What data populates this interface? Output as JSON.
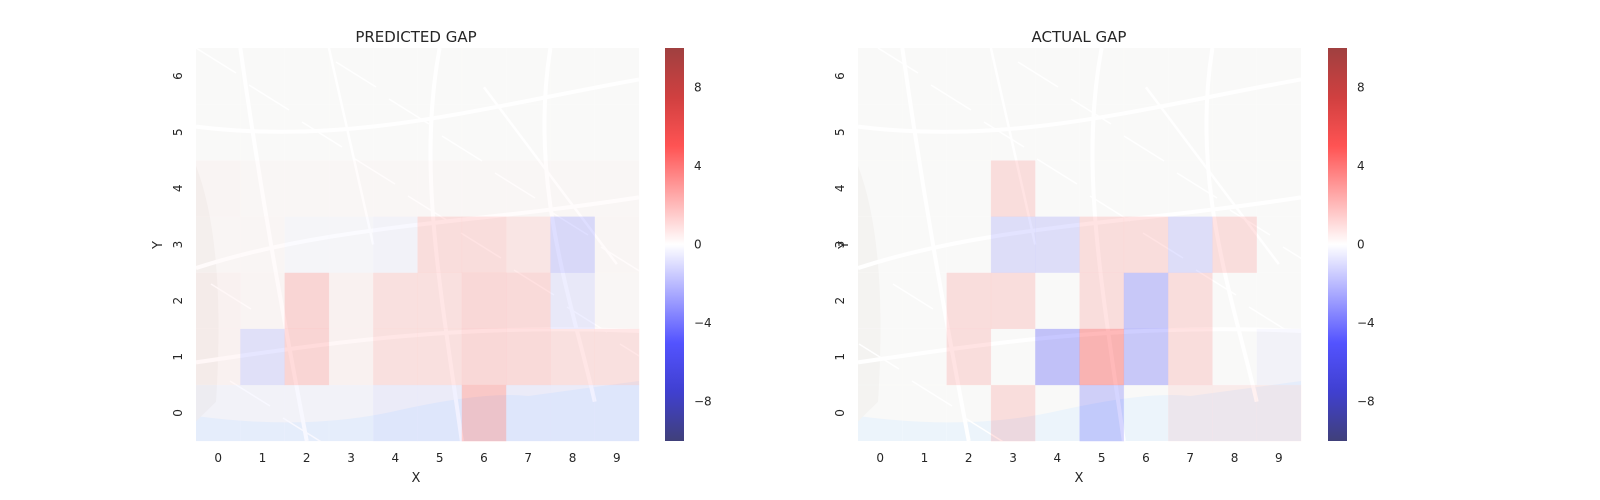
{
  "chart_data": [
    {
      "type": "heatmap",
      "title": "PREDICTED GAP",
      "xlabel": "X",
      "ylabel": "Y",
      "x": [
        "0",
        "1",
        "2",
        "3",
        "4",
        "5",
        "6",
        "7",
        "8",
        "9"
      ],
      "y": [
        "0",
        "1",
        "2",
        "3",
        "4",
        "5",
        "6"
      ],
      "colormap": "seismic",
      "colorbar": {
        "ticks": [
          8,
          4,
          0,
          -4,
          -8
        ],
        "labels": [
          "8",
          "4",
          "0",
          "−4",
          "−8"
        ],
        "range": [
          -10,
          10
        ]
      },
      "background": "street-map",
      "values": [
        [
          -0.5,
          -0.5,
          -0.5,
          -0.5,
          -1.0,
          -1.0,
          3.5,
          -1.0,
          -1.0,
          -1.0
        ],
        [
          0.6,
          -1.8,
          2.6,
          0.6,
          1.8,
          1.8,
          2.4,
          2.2,
          1.8,
          1.8
        ],
        [
          0.6,
          0.4,
          2.6,
          0.6,
          1.8,
          1.8,
          2.4,
          2.2,
          -1.2,
          0.2
        ],
        [
          0.3,
          0.3,
          -0.3,
          -0.3,
          -0.5,
          2.0,
          2.0,
          1.4,
          -2.4,
          0.3
        ],
        [
          0.4,
          0.2,
          0.2,
          0.2,
          0.2,
          0.2,
          0.2,
          0.2,
          0.2,
          0.2
        ],
        [
          0.0,
          0.0,
          0.0,
          0.0,
          0.0,
          0.0,
          0.0,
          0.0,
          0.0,
          0.0
        ],
        [
          0.0,
          0.0,
          0.0,
          0.0,
          0.0,
          0.0,
          0.0,
          0.0,
          0.0,
          0.0
        ]
      ]
    },
    {
      "type": "heatmap",
      "title": "ACTUAL GAP",
      "xlabel": "X",
      "ylabel": "Y",
      "x": [
        "0",
        "1",
        "2",
        "3",
        "4",
        "5",
        "6",
        "7",
        "8",
        "9"
      ],
      "y": [
        "0",
        "1",
        "2",
        "3",
        "4",
        "5",
        "6"
      ],
      "colormap": "seismic",
      "colorbar": {
        "ticks": [
          8,
          4,
          0,
          -4,
          -8
        ],
        "labels": [
          "8",
          "4",
          "0",
          "−4",
          "−8"
        ],
        "range": [
          -10,
          10
        ]
      },
      "background": "street-map",
      "values": [
        [
          0.0,
          0.0,
          0.0,
          2.0,
          0.0,
          -3.0,
          0.0,
          1.0,
          1.0,
          1.0
        ],
        [
          0.0,
          0.0,
          2.0,
          0.0,
          -4.0,
          5.0,
          -3.5,
          2.0,
          0.0,
          -0.5
        ],
        [
          0.0,
          0.0,
          2.0,
          2.0,
          0.0,
          2.0,
          -3.5,
          2.0,
          0.0,
          0.0
        ],
        [
          0.0,
          0.0,
          0.0,
          -2.0,
          -2.0,
          2.0,
          2.0,
          -2.0,
          2.0,
          0.0
        ],
        [
          0.0,
          0.0,
          0.0,
          2.0,
          0.0,
          0.0,
          0.0,
          0.0,
          0.0,
          0.0
        ],
        [
          0.0,
          0.0,
          0.0,
          0.0,
          0.0,
          0.0,
          0.0,
          0.0,
          0.0,
          0.0
        ],
        [
          0.0,
          0.0,
          0.0,
          0.0,
          0.0,
          0.0,
          0.0,
          0.0,
          0.0,
          0.0
        ]
      ]
    }
  ]
}
